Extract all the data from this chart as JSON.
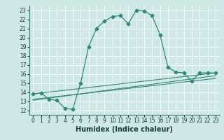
{
  "title": "",
  "xlabel": "Humidex (Indice chaleur)",
  "xlim": [
    -0.5,
    23.5
  ],
  "ylim": [
    11.5,
    23.5
  ],
  "xticks": [
    0,
    1,
    2,
    3,
    4,
    5,
    6,
    7,
    8,
    9,
    10,
    11,
    12,
    13,
    14,
    15,
    16,
    17,
    18,
    19,
    20,
    21,
    22,
    23
  ],
  "yticks": [
    12,
    13,
    14,
    15,
    16,
    17,
    18,
    19,
    20,
    21,
    22,
    23
  ],
  "line_color": "#2d8a7a",
  "bg_color": "#cde8e5",
  "grid_color": "#ffffff",
  "main_line": {
    "x": [
      0,
      1,
      2,
      3,
      4,
      5,
      6,
      7,
      8,
      9,
      10,
      11,
      12,
      13,
      14,
      15,
      16,
      17,
      18,
      19,
      20,
      21,
      22,
      23
    ],
    "y": [
      13.8,
      13.9,
      13.2,
      13.1,
      12.2,
      12.1,
      15.0,
      19.0,
      21.0,
      21.8,
      22.3,
      22.4,
      21.5,
      23.0,
      22.9,
      22.4,
      20.3,
      16.7,
      16.2,
      16.1,
      15.2,
      16.1,
      16.1,
      16.1
    ]
  },
  "trend_lines": [
    {
      "x": [
        0,
        23
      ],
      "y": [
        13.8,
        16.1
      ]
    },
    {
      "x": [
        0,
        23
      ],
      "y": [
        13.2,
        15.5
      ]
    },
    {
      "x": [
        0,
        23
      ],
      "y": [
        13.1,
        15.8
      ]
    }
  ],
  "xlabel_fontsize": 7,
  "tick_fontsize": 5.5,
  "linewidth": 0.9,
  "markersize": 2.5
}
